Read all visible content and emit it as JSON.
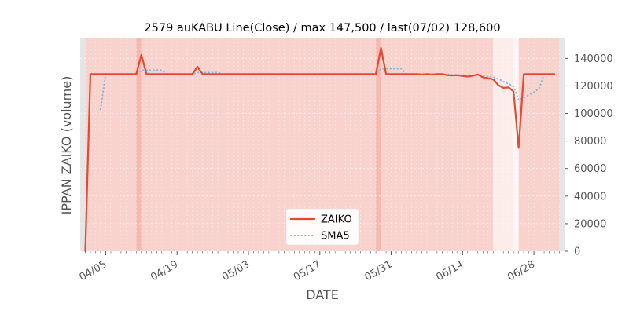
{
  "chart_data": {
    "type": "line",
    "title": "2579 auKABU Line(Close) / max 147,500 / last(07/02) 128,600",
    "xlabel": "DATE",
    "ylabel": "IPPAN ZAIKO (volume)",
    "ylim": [
      0,
      155000
    ],
    "x_ticks": [
      "04/05",
      "04/19",
      "05/03",
      "05/17",
      "05/31",
      "06/14",
      "06/28"
    ],
    "y_ticks": [
      "0",
      "20000",
      "40000",
      "60000",
      "80000",
      "100000",
      "120000",
      "140000"
    ],
    "y_tick_values": [
      0,
      20000,
      40000,
      60000,
      80000,
      100000,
      120000,
      140000
    ],
    "grid": true,
    "legend_position": "lower center",
    "series": [
      {
        "name": "ZAIKO",
        "color": "#e24a33",
        "style": "solid",
        "points": [
          [
            "2023-04-01",
            0
          ],
          [
            "2023-04-02",
            128600
          ],
          [
            "2023-04-03",
            128600
          ],
          [
            "2023-04-04",
            128600
          ],
          [
            "2023-04-05",
            128600
          ],
          [
            "2023-04-06",
            128600
          ],
          [
            "2023-04-07",
            128600
          ],
          [
            "2023-04-08",
            128600
          ],
          [
            "2023-04-09",
            128600
          ],
          [
            "2023-04-10",
            128600
          ],
          [
            "2023-04-11",
            128600
          ],
          [
            "2023-04-12",
            142600
          ],
          [
            "2023-04-13",
            128600
          ],
          [
            "2023-04-14",
            128600
          ],
          [
            "2023-04-15",
            128600
          ],
          [
            "2023-04-16",
            128600
          ],
          [
            "2023-04-17",
            128600
          ],
          [
            "2023-04-18",
            128600
          ],
          [
            "2023-04-19",
            128600
          ],
          [
            "2023-04-20",
            128600
          ],
          [
            "2023-04-21",
            128600
          ],
          [
            "2023-04-22",
            128600
          ],
          [
            "2023-04-23",
            134000
          ],
          [
            "2023-04-24",
            128600
          ],
          [
            "2023-04-25",
            128600
          ],
          [
            "2023-04-26",
            128600
          ],
          [
            "2023-04-27",
            128600
          ],
          [
            "2023-04-28",
            128600
          ],
          [
            "2023-04-29",
            128600
          ],
          [
            "2023-04-30",
            128600
          ],
          [
            "2023-05-01",
            128600
          ],
          [
            "2023-05-02",
            128600
          ],
          [
            "2023-05-03",
            128600
          ],
          [
            "2023-05-04",
            128600
          ],
          [
            "2023-05-05",
            128600
          ],
          [
            "2023-05-06",
            128600
          ],
          [
            "2023-05-07",
            128600
          ],
          [
            "2023-05-08",
            128600
          ],
          [
            "2023-05-09",
            128600
          ],
          [
            "2023-05-10",
            128600
          ],
          [
            "2023-05-11",
            128600
          ],
          [
            "2023-05-12",
            128600
          ],
          [
            "2023-05-13",
            128600
          ],
          [
            "2023-05-14",
            128600
          ],
          [
            "2023-05-15",
            128600
          ],
          [
            "2023-05-16",
            128600
          ],
          [
            "2023-05-17",
            128600
          ],
          [
            "2023-05-18",
            128600
          ],
          [
            "2023-05-19",
            128600
          ],
          [
            "2023-05-20",
            128600
          ],
          [
            "2023-05-21",
            128600
          ],
          [
            "2023-05-22",
            128600
          ],
          [
            "2023-05-23",
            128600
          ],
          [
            "2023-05-24",
            128600
          ],
          [
            "2023-05-25",
            128600
          ],
          [
            "2023-05-26",
            128600
          ],
          [
            "2023-05-27",
            128600
          ],
          [
            "2023-05-28",
            128600
          ],
          [
            "2023-05-29",
            147500
          ],
          [
            "2023-05-30",
            128600
          ],
          [
            "2023-05-31",
            128600
          ],
          [
            "2023-06-01",
            128600
          ],
          [
            "2023-06-02",
            128600
          ],
          [
            "2023-06-03",
            128600
          ],
          [
            "2023-06-04",
            128600
          ],
          [
            "2023-06-05",
            128600
          ],
          [
            "2023-06-06",
            128300
          ],
          [
            "2023-06-07",
            128600
          ],
          [
            "2023-06-08",
            128300
          ],
          [
            "2023-06-09",
            128600
          ],
          [
            "2023-06-10",
            128600
          ],
          [
            "2023-06-11",
            127800
          ],
          [
            "2023-06-12",
            127600
          ],
          [
            "2023-06-13",
            127800
          ],
          [
            "2023-06-14",
            127200
          ],
          [
            "2023-06-15",
            126800
          ],
          [
            "2023-06-16",
            127400
          ],
          [
            "2023-06-17",
            128300
          ],
          [
            "2023-06-18",
            126200
          ],
          [
            "2023-06-19",
            125600
          ],
          [
            "2023-06-20",
            124700
          ],
          [
            "2023-06-21",
            120600
          ],
          [
            "2023-06-22",
            118600
          ],
          [
            "2023-06-23",
            118900
          ],
          [
            "2023-06-24",
            116000
          ],
          [
            "2023-06-25",
            75000
          ],
          [
            "2023-06-26",
            128600
          ],
          [
            "2023-06-27",
            128600
          ],
          [
            "2023-06-28",
            128600
          ],
          [
            "2023-06-29",
            128600
          ],
          [
            "2023-06-30",
            128600
          ],
          [
            "2023-07-01",
            128600
          ],
          [
            "2023-07-02",
            128600
          ]
        ]
      },
      {
        "name": "SMA5",
        "color": "#8eb7dc",
        "style": "dotted",
        "points": [
          [
            "2023-04-04",
            103000
          ],
          [
            "2023-04-05",
            128600
          ],
          [
            "2023-04-06",
            128600
          ],
          [
            "2023-04-07",
            128600
          ],
          [
            "2023-04-08",
            128600
          ],
          [
            "2023-04-09",
            128600
          ],
          [
            "2023-04-10",
            128600
          ],
          [
            "2023-04-11",
            128600
          ],
          [
            "2023-04-12",
            131400
          ],
          [
            "2023-04-13",
            131400
          ],
          [
            "2023-04-14",
            131400
          ],
          [
            "2023-04-15",
            131400
          ],
          [
            "2023-04-16",
            131400
          ],
          [
            "2023-04-17",
            128600
          ],
          [
            "2023-04-18",
            128600
          ],
          [
            "2023-04-19",
            128600
          ],
          [
            "2023-04-20",
            128600
          ],
          [
            "2023-04-21",
            128600
          ],
          [
            "2023-04-22",
            128600
          ],
          [
            "2023-04-23",
            129700
          ],
          [
            "2023-04-24",
            129700
          ],
          [
            "2023-04-25",
            129700
          ],
          [
            "2023-04-26",
            129700
          ],
          [
            "2023-04-27",
            129700
          ],
          [
            "2023-04-28",
            128600
          ],
          [
            "2023-04-29",
            128600
          ],
          [
            "2023-04-30",
            128600
          ],
          [
            "2023-05-01",
            128600
          ],
          [
            "2023-05-02",
            128600
          ],
          [
            "2023-05-03",
            128600
          ],
          [
            "2023-05-04",
            128600
          ],
          [
            "2023-05-05",
            128600
          ],
          [
            "2023-05-06",
            128600
          ],
          [
            "2023-05-07",
            128600
          ],
          [
            "2023-05-08",
            128600
          ],
          [
            "2023-05-09",
            128600
          ],
          [
            "2023-05-10",
            128600
          ],
          [
            "2023-05-11",
            128600
          ],
          [
            "2023-05-12",
            128600
          ],
          [
            "2023-05-13",
            128600
          ],
          [
            "2023-05-14",
            128600
          ],
          [
            "2023-05-15",
            128600
          ],
          [
            "2023-05-16",
            128600
          ],
          [
            "2023-05-17",
            128600
          ],
          [
            "2023-05-18",
            128600
          ],
          [
            "2023-05-19",
            128600
          ],
          [
            "2023-05-20",
            128600
          ],
          [
            "2023-05-21",
            128600
          ],
          [
            "2023-05-22",
            128600
          ],
          [
            "2023-05-23",
            128600
          ],
          [
            "2023-05-24",
            128600
          ],
          [
            "2023-05-25",
            128600
          ],
          [
            "2023-05-26",
            128600
          ],
          [
            "2023-05-27",
            128600
          ],
          [
            "2023-05-28",
            128600
          ],
          [
            "2023-05-29",
            132400
          ],
          [
            "2023-05-30",
            132400
          ],
          [
            "2023-05-31",
            132400
          ],
          [
            "2023-06-01",
            132400
          ],
          [
            "2023-06-02",
            132400
          ],
          [
            "2023-06-03",
            128600
          ],
          [
            "2023-06-04",
            128600
          ],
          [
            "2023-06-05",
            128600
          ],
          [
            "2023-06-06",
            128500
          ],
          [
            "2023-06-07",
            128500
          ],
          [
            "2023-06-08",
            128400
          ],
          [
            "2023-06-09",
            128400
          ],
          [
            "2023-06-10",
            128400
          ],
          [
            "2023-06-11",
            128300
          ],
          [
            "2023-06-12",
            128100
          ],
          [
            "2023-06-13",
            127900
          ],
          [
            "2023-06-14",
            127600
          ],
          [
            "2023-06-15",
            127300
          ],
          [
            "2023-06-16",
            127300
          ],
          [
            "2023-06-17",
            127500
          ],
          [
            "2023-06-18",
            127200
          ],
          [
            "2023-06-19",
            126800
          ],
          [
            "2023-06-20",
            126400
          ],
          [
            "2023-06-21",
            125100
          ],
          [
            "2023-06-22",
            123200
          ],
          [
            "2023-06-23",
            121600
          ],
          [
            "2023-06-24",
            119700
          ],
          [
            "2023-06-25",
            109800
          ],
          [
            "2023-06-26",
            111400
          ],
          [
            "2023-06-27",
            113400
          ],
          [
            "2023-06-28",
            115400
          ],
          [
            "2023-06-29",
            118000
          ],
          [
            "2023-06-30",
            128600
          ]
        ]
      }
    ],
    "shaded_bands": [
      {
        "start": "2023-03-31",
        "end": "2023-04-01",
        "color": "#e5e5e5",
        "opacity": 1.0
      },
      {
        "start": "2023-04-01",
        "end": "2023-04-11",
        "color": "#e24a33",
        "opacity": 0.25
      },
      {
        "start": "2023-04-11",
        "end": "2023-04-12",
        "color": "#e24a33",
        "opacity": 0.38
      },
      {
        "start": "2023-04-12",
        "end": "2023-05-28",
        "color": "#e24a33",
        "opacity": 0.25
      },
      {
        "start": "2023-05-28",
        "end": "2023-05-29",
        "color": "#e24a33",
        "opacity": 0.38
      },
      {
        "start": "2023-05-29",
        "end": "2023-06-20",
        "color": "#e24a33",
        "opacity": 0.25
      },
      {
        "start": "2023-06-20",
        "end": "2023-06-24",
        "color": "#e24a33",
        "opacity": 0.1
      },
      {
        "start": "2023-06-24",
        "end": "2023-06-25",
        "color": "#e24a33",
        "opacity": 0.05
      },
      {
        "start": "2023-06-25",
        "end": "2023-07-03",
        "color": "#e24a33",
        "opacity": 0.25
      },
      {
        "start": "2023-07-03",
        "end": "2023-07-04",
        "color": "#e5e5e5",
        "opacity": 1.0
      }
    ]
  }
}
